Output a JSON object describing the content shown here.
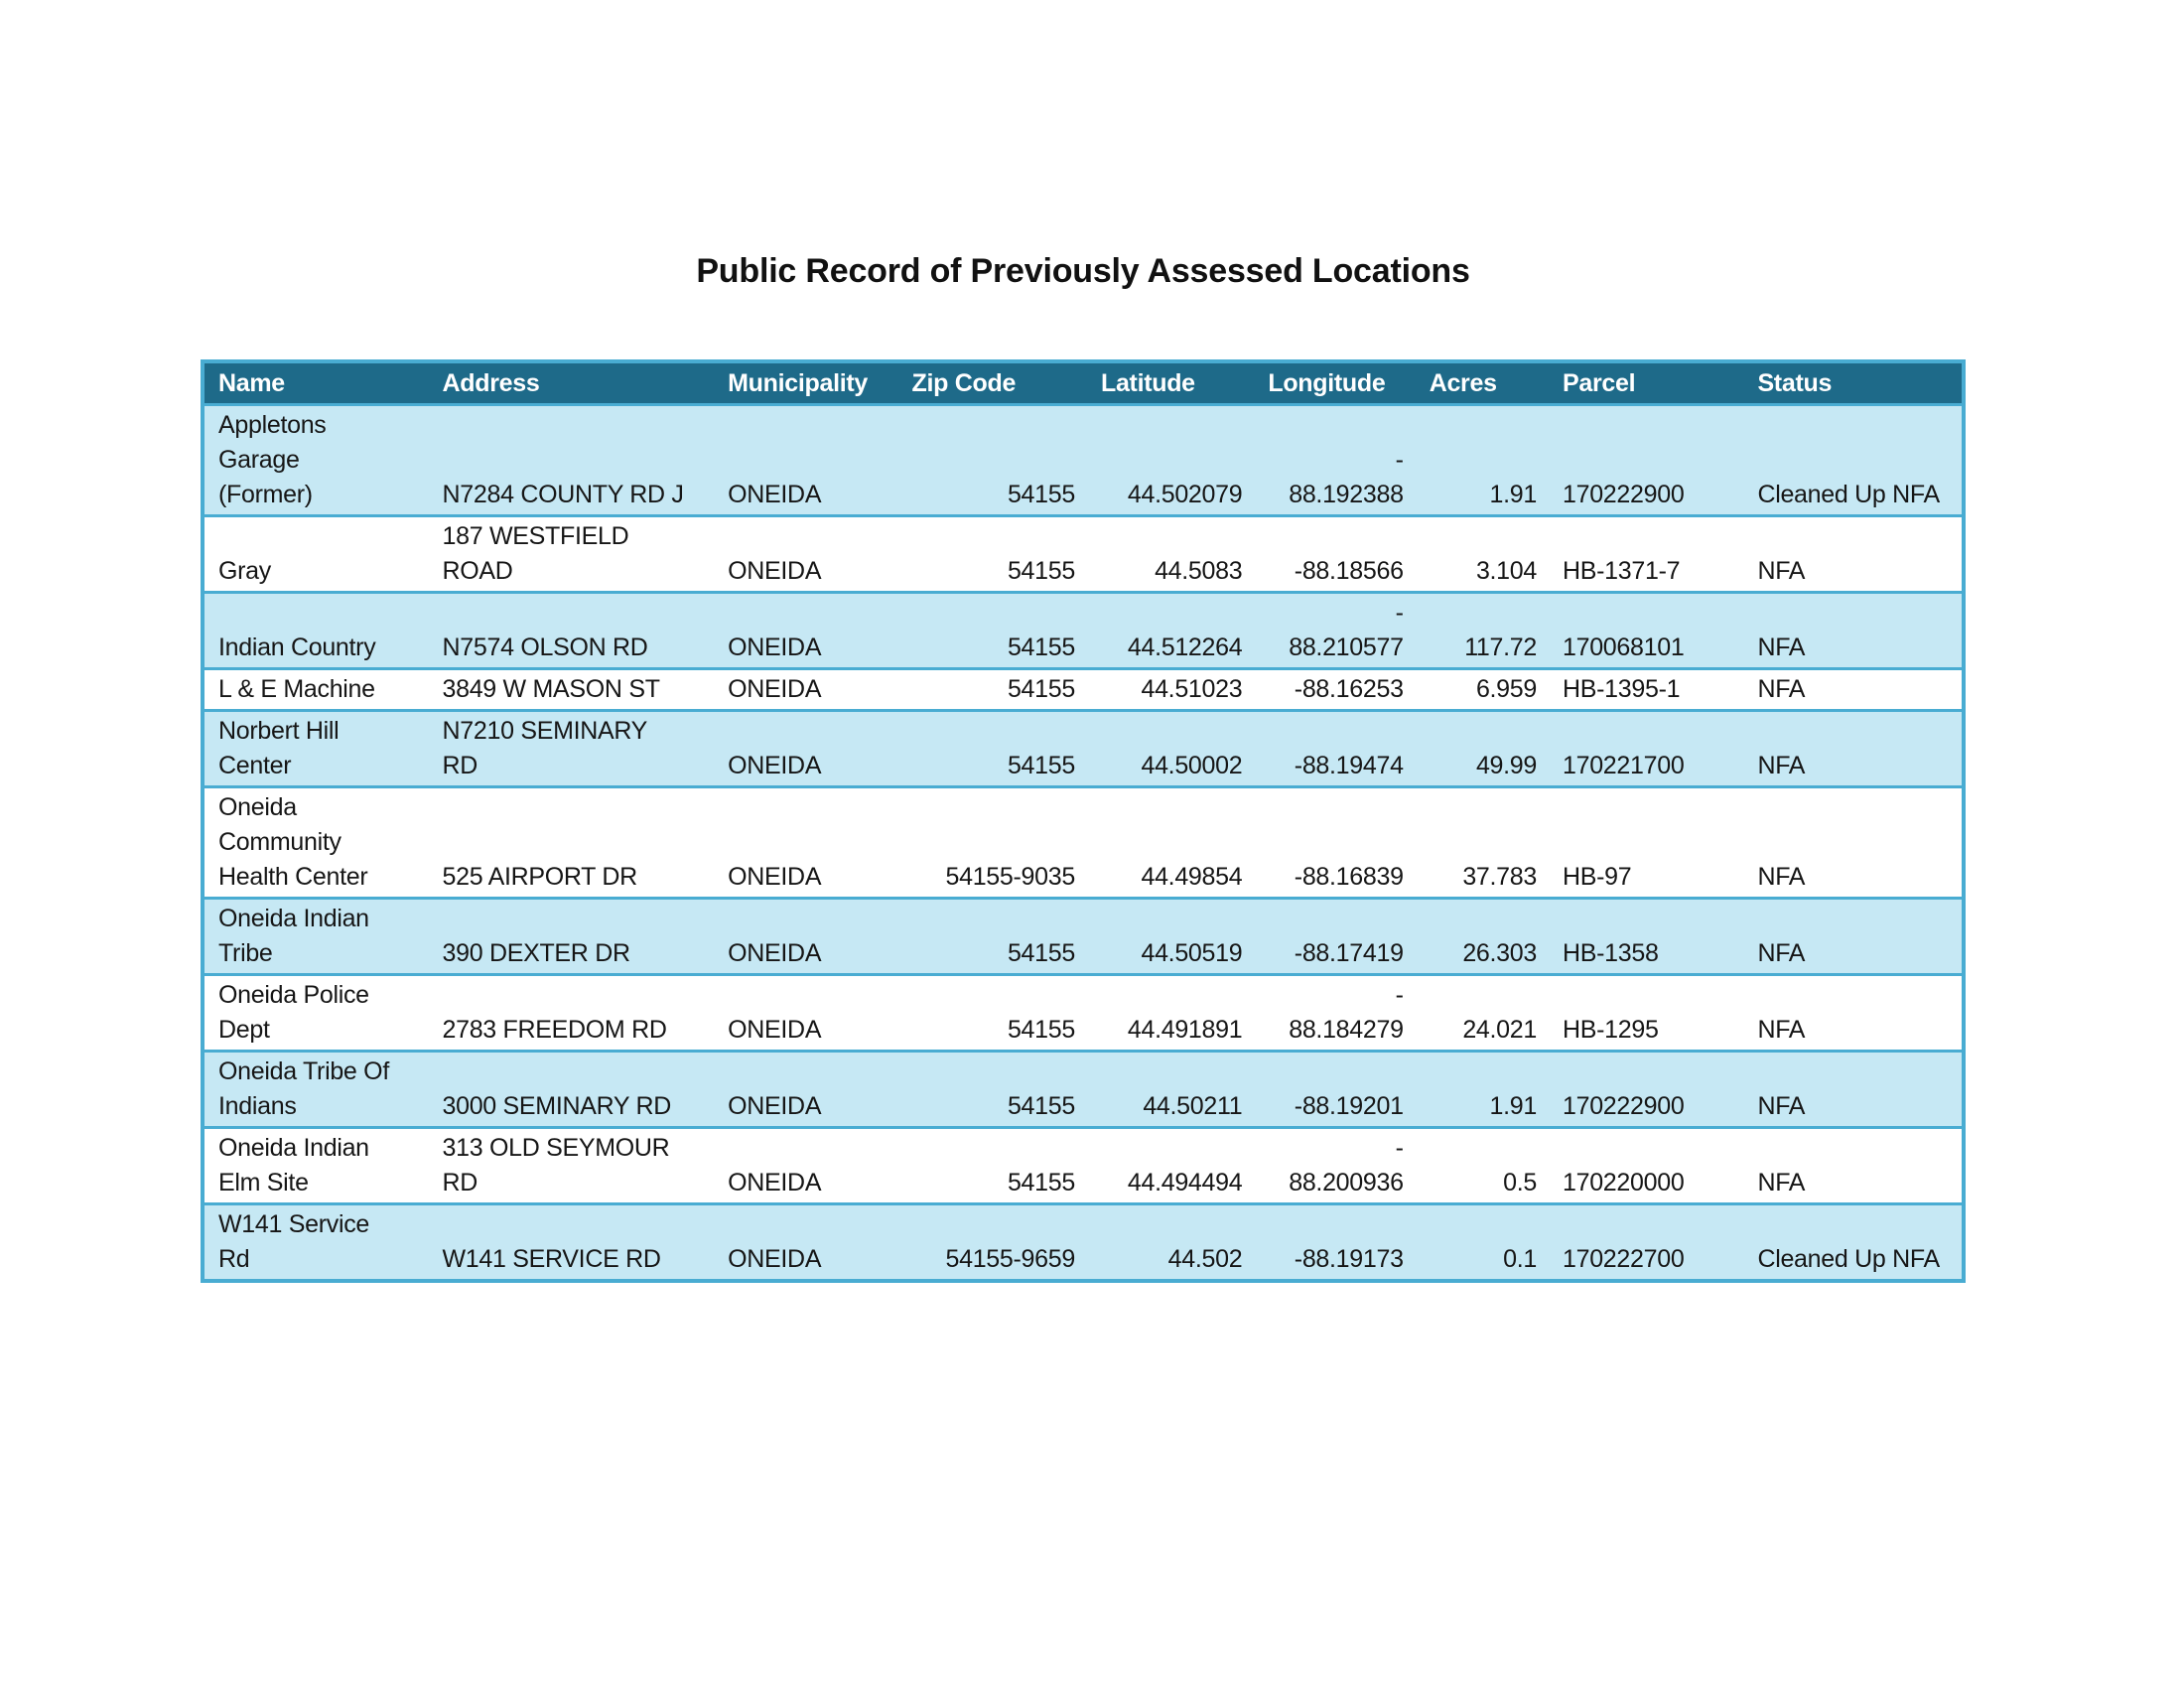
{
  "page": {
    "title": "Public Record of Previously Assessed Locations"
  },
  "colors": {
    "header_bg": "#1E6A89",
    "header_text": "#FFFFFF",
    "table_border": "#49ACD2",
    "stripe_row_bg": "#C6E8F4",
    "plain_row_bg": "#FFFFFF",
    "body_text": "#161616"
  },
  "table": {
    "columns": [
      {
        "key": "name",
        "label": "Name",
        "align": "left"
      },
      {
        "key": "address",
        "label": "Address",
        "align": "left"
      },
      {
        "key": "municipality",
        "label": "Municipality",
        "align": "left"
      },
      {
        "key": "zip",
        "label": "Zip Code",
        "align": "right"
      },
      {
        "key": "latitude",
        "label": "Latitude",
        "align": "right"
      },
      {
        "key": "longitude",
        "label": "Longitude",
        "align": "right"
      },
      {
        "key": "acres",
        "label": "Acres",
        "align": "right"
      },
      {
        "key": "parcel",
        "label": "Parcel",
        "align": "left"
      },
      {
        "key": "status",
        "label": "Status",
        "align": "left"
      }
    ],
    "rows": [
      {
        "name": "Appletons\nGarage\n(Former)",
        "address": "N7284 COUNTY RD J",
        "municipality": "ONEIDA",
        "zip": "54155",
        "latitude": "44.502079",
        "longitude": "-\n88.192388",
        "acres": "1.91",
        "parcel": "170222900",
        "status": "Cleaned Up NFA"
      },
      {
        "name": "Gray",
        "address": "187 WESTFIELD\nROAD",
        "municipality": "ONEIDA",
        "zip": "54155",
        "latitude": "44.5083",
        "longitude": "-88.18566",
        "acres": "3.104",
        "parcel": "HB-1371-7",
        "status": "NFA"
      },
      {
        "name": "Indian Country",
        "address": "N7574 OLSON RD",
        "municipality": "ONEIDA",
        "zip": "54155",
        "latitude": "44.512264",
        "longitude": "-\n88.210577",
        "acres": "117.72",
        "parcel": "170068101",
        "status": "NFA"
      },
      {
        "name": "L & E Machine",
        "address": "3849 W MASON ST",
        "municipality": "ONEIDA",
        "zip": "54155",
        "latitude": "44.51023",
        "longitude": "-88.16253",
        "acres": "6.959",
        "parcel": "HB-1395-1",
        "status": "NFA"
      },
      {
        "name": "Norbert Hill\nCenter",
        "address": "N7210 SEMINARY\nRD",
        "municipality": "ONEIDA",
        "zip": "54155",
        "latitude": "44.50002",
        "longitude": "-88.19474",
        "acres": "49.99",
        "parcel": "170221700",
        "status": "NFA"
      },
      {
        "name": "Oneida\nCommunity\nHealth Center",
        "address": "525 AIRPORT DR",
        "municipality": "ONEIDA",
        "zip": "54155-9035",
        "latitude": "44.49854",
        "longitude": "-88.16839",
        "acres": "37.783",
        "parcel": "HB-97",
        "status": "NFA"
      },
      {
        "name": "Oneida Indian\nTribe",
        "address": "390 DEXTER DR",
        "municipality": "ONEIDA",
        "zip": "54155",
        "latitude": "44.50519",
        "longitude": "-88.17419",
        "acres": "26.303",
        "parcel": "HB-1358",
        "status": "NFA"
      },
      {
        "name": "Oneida Police\nDept",
        "address": "2783 FREEDOM RD",
        "municipality": "ONEIDA",
        "zip": "54155",
        "latitude": "44.491891",
        "longitude": "-\n88.184279",
        "acres": "24.021",
        "parcel": "HB-1295",
        "status": "NFA"
      },
      {
        "name": "Oneida Tribe Of\nIndians",
        "address": "3000 SEMINARY RD",
        "municipality": "ONEIDA",
        "zip": "54155",
        "latitude": "44.50211",
        "longitude": "-88.19201",
        "acres": "1.91",
        "parcel": "170222900",
        "status": "NFA"
      },
      {
        "name": "Oneida Indian\nElm Site",
        "address": "313 OLD SEYMOUR\nRD",
        "municipality": "ONEIDA",
        "zip": "54155",
        "latitude": "44.494494",
        "longitude": "-\n88.200936",
        "acres": "0.5",
        "parcel": "170220000",
        "status": "NFA"
      },
      {
        "name": "W141 Service\nRd",
        "address": "W141 SERVICE RD",
        "municipality": "ONEIDA",
        "zip": "54155-9659",
        "latitude": "44.502",
        "longitude": "-88.19173",
        "acres": "0.1",
        "parcel": "170222700",
        "status": "Cleaned Up NFA"
      }
    ]
  }
}
